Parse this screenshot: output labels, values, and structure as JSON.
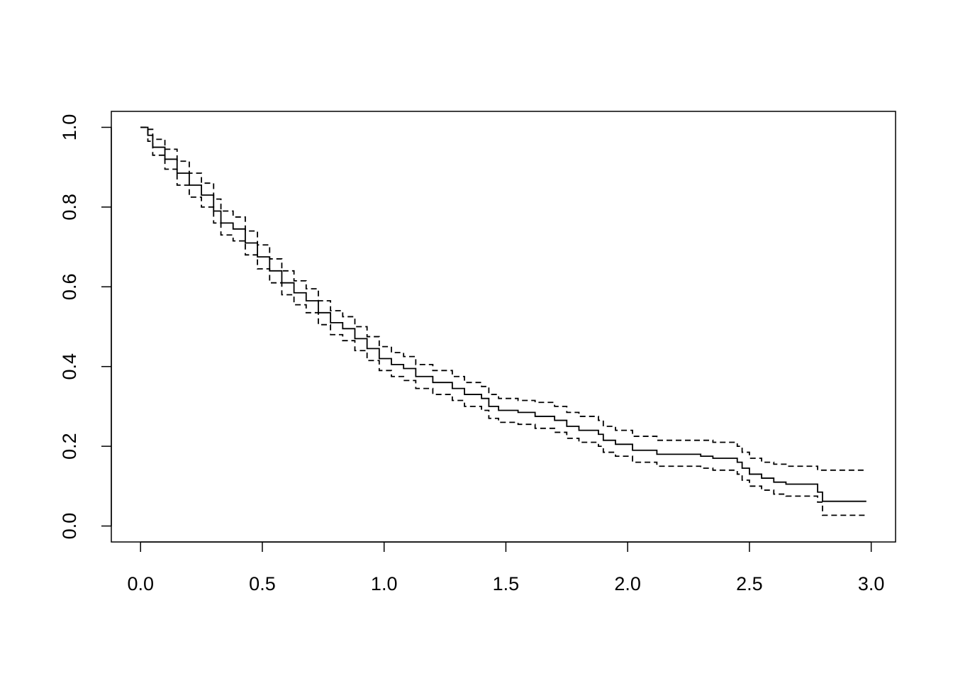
{
  "chart_data": {
    "type": "line",
    "step": "post",
    "xlim": [
      -0.12,
      3.1
    ],
    "ylim": [
      -0.04,
      1.04
    ],
    "xticks": [
      {
        "value": 0,
        "label": "0.0"
      },
      {
        "value": 0.5,
        "label": "0.5"
      },
      {
        "value": 1,
        "label": "1.0"
      },
      {
        "value": 1.5,
        "label": "1.5"
      },
      {
        "value": 2,
        "label": "2.0"
      },
      {
        "value": 2.5,
        "label": "2.5"
      },
      {
        "value": 3,
        "label": "3.0"
      }
    ],
    "yticks": [
      {
        "value": 0,
        "label": "0.0"
      },
      {
        "value": 0.2,
        "label": "0.2"
      },
      {
        "value": 0.4,
        "label": "0.4"
      },
      {
        "value": 0.6,
        "label": "0.6"
      },
      {
        "value": 0.8,
        "label": "0.8"
      },
      {
        "value": 1,
        "label": "1.0"
      }
    ],
    "grid": false,
    "x": [
      0,
      0.03,
      0.05,
      0.1,
      0.15,
      0.2,
      0.25,
      0.3,
      0.33,
      0.38,
      0.43,
      0.48,
      0.53,
      0.58,
      0.63,
      0.68,
      0.73,
      0.78,
      0.83,
      0.88,
      0.93,
      0.98,
      1.03,
      1.08,
      1.13,
      1.2,
      1.28,
      1.33,
      1.4,
      1.43,
      1.47,
      1.55,
      1.62,
      1.7,
      1.75,
      1.8,
      1.88,
      1.9,
      1.95,
      2.02,
      2.12,
      2.3,
      2.35,
      2.45,
      2.47,
      2.5,
      2.55,
      2.6,
      2.65,
      2.78,
      2.8,
      2.98
    ],
    "series": [
      {
        "color": "#000000",
        "dashed": false,
        "values": [
          1.0,
          0.98,
          0.95,
          0.92,
          0.885,
          0.855,
          0.83,
          0.79,
          0.76,
          0.745,
          0.71,
          0.675,
          0.64,
          0.61,
          0.585,
          0.565,
          0.535,
          0.51,
          0.495,
          0.47,
          0.445,
          0.42,
          0.405,
          0.395,
          0.375,
          0.36,
          0.345,
          0.33,
          0.32,
          0.3,
          0.29,
          0.285,
          0.275,
          0.265,
          0.25,
          0.24,
          0.23,
          0.215,
          0.205,
          0.19,
          0.18,
          0.175,
          0.17,
          0.16,
          0.145,
          0.13,
          0.12,
          0.11,
          0.105,
          0.085,
          0.062,
          0.062
        ]
      },
      {
        "color": "#000000",
        "dashed": true,
        "values": [
          1.0,
          0.995,
          0.97,
          0.945,
          0.915,
          0.885,
          0.86,
          0.82,
          0.79,
          0.775,
          0.74,
          0.705,
          0.67,
          0.64,
          0.615,
          0.595,
          0.565,
          0.54,
          0.525,
          0.5,
          0.475,
          0.45,
          0.435,
          0.425,
          0.405,
          0.39,
          0.375,
          0.36,
          0.35,
          0.33,
          0.32,
          0.315,
          0.31,
          0.3,
          0.285,
          0.275,
          0.265,
          0.25,
          0.24,
          0.225,
          0.215,
          0.215,
          0.21,
          0.2,
          0.185,
          0.17,
          0.16,
          0.155,
          0.15,
          0.14,
          0.14,
          0.14
        ]
      },
      {
        "color": "#000000",
        "dashed": true,
        "values": [
          1.0,
          0.965,
          0.93,
          0.895,
          0.855,
          0.825,
          0.8,
          0.76,
          0.73,
          0.715,
          0.68,
          0.645,
          0.61,
          0.58,
          0.555,
          0.535,
          0.505,
          0.48,
          0.465,
          0.44,
          0.415,
          0.39,
          0.375,
          0.365,
          0.345,
          0.33,
          0.315,
          0.3,
          0.29,
          0.27,
          0.26,
          0.255,
          0.245,
          0.235,
          0.22,
          0.21,
          0.2,
          0.185,
          0.175,
          0.16,
          0.15,
          0.145,
          0.14,
          0.13,
          0.115,
          0.1,
          0.09,
          0.08,
          0.075,
          0.06,
          0.027,
          0.027
        ]
      }
    ]
  }
}
